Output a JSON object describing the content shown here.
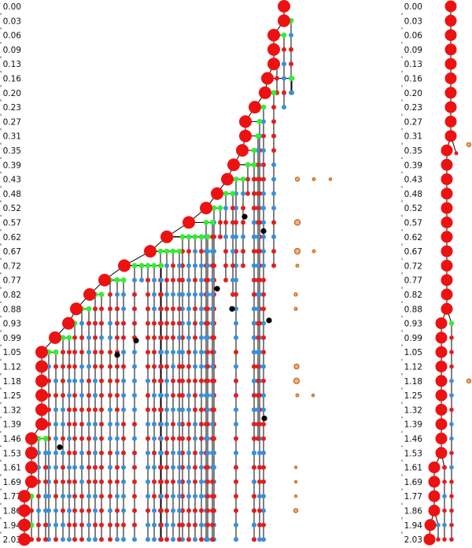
{
  "time_labels": [
    "0.00",
    "0.03",
    "0.06",
    "0.09",
    "0.13",
    "0.16",
    "0.20",
    "0.23",
    "0.27",
    "0.31",
    "0.35",
    "0.39",
    "0.43",
    "0.48",
    "0.52",
    "0.57",
    "0.62",
    "0.67",
    "0.72",
    "0.77",
    "0.82",
    "0.88",
    "0.93",
    "0.99",
    "1.05",
    "1.12",
    "1.18",
    "1.25",
    "1.32",
    "1.39",
    "1.46",
    "1.53",
    "1.61",
    "1.69",
    "1.77",
    "1.86",
    "1.94",
    "2.03"
  ],
  "colors": {
    "lineage": "#ee1111",
    "small_red": "#dd2020",
    "blue": "#3a8fd8",
    "green": "#33ee33",
    "black": "#000000",
    "orange_ring": "#c87020",
    "orange_fill": "#f0b090",
    "edge": "#000000"
  }
}
